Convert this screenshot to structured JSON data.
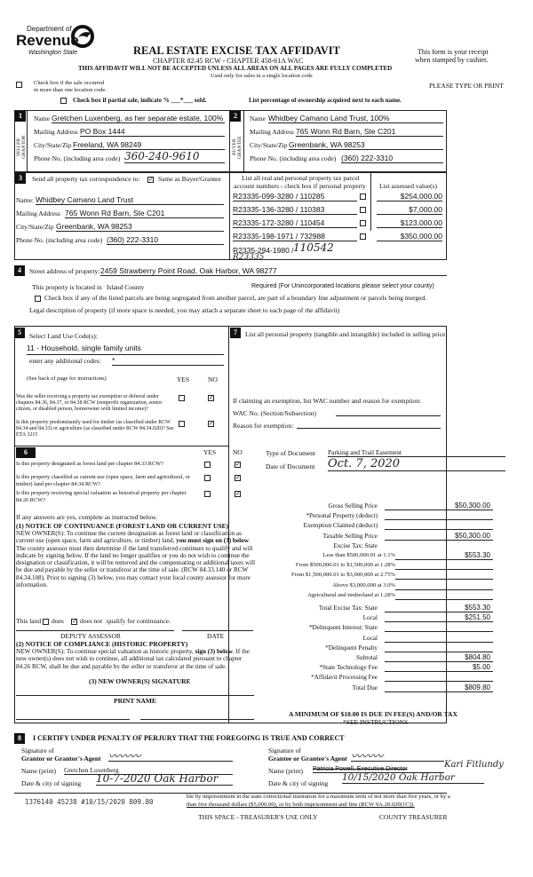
{
  "header": {
    "dept_line1": "Department of",
    "dept_line2": "Revenue",
    "dept_line3": "Washington State",
    "title": "REAL ESTATE EXCISE TAX AFFIDAVIT",
    "chapter": "CHAPTER 82.45 RCW - CHAPTER 458-61A WAC",
    "receipt_line1": "This form is your receipt",
    "receipt_line2": "when stamped by cashier.",
    "warning": "THIS AFFIDAVIT WILL NOT BE ACCEPTED UNLESS ALL AREAS ON ALL PAGES ARE FULLY COMPLETED",
    "used_only": "Used only for sales in a single location code",
    "multi_location_line1": "Check box if the sale occurred",
    "multi_location_line2": "in more than one location code.",
    "please_type": "PLEASE TYPE OR PRINT",
    "partial_sale": "Check box if partial sale, indicate % ___*___ sold.",
    "list_percentage": "List percentage of ownership acquired next to each name."
  },
  "seller": {
    "num": "1",
    "side_label": "SELLER GRANTOR",
    "name_label": "Name",
    "name": "Gretchen Luxenberg, as her separate estate, 100%",
    "address_label": "Mailing Address",
    "address": "PO Box 1444",
    "city_label": "City/State/Zip",
    "city": "Freeland, WA  98249",
    "phone_label": "Phone No. (including area code)",
    "phone": "360-240-9610"
  },
  "buyer": {
    "num": "2",
    "side_label": "BUYER GRANTEE",
    "name_label": "Name",
    "name": "Whidbey Camano Land Trust, 100%",
    "address_label": "Mailing Address",
    "address": "765 Wonn Rd Barn, Ste C201",
    "city_label": "City/State/Zip",
    "city": "Greenbank, WA  98253",
    "phone_label": "Phone No. (including area code)",
    "phone": "(360) 222-3310"
  },
  "correspondence": {
    "num": "3",
    "label": "Send all property tax correspondence to:",
    "same_as": "Same as Buyer/Grantee",
    "same_checked": true,
    "name_label": "Name:",
    "name": "Whidbey Camano Land Trust",
    "address_label": "Mailing Address",
    "address": "765 Wonn Rd Barn, Ste C201",
    "city_label": "City/State/Zip",
    "city": "Greenbank, WA  98253",
    "phone_label": "Phone No. (including area code)",
    "phone": "(360) 222-3310"
  },
  "parcels": {
    "header1": "List all real and personal property tax parcel",
    "header2": "account numbers - check box if personal property",
    "values_header": "List assessed value(s)",
    "rows": [
      {
        "account": "R23335-099-3280 / 110285",
        "value": "$254,000.00"
      },
      {
        "account": "R23335-136-3280 / 110383",
        "value": "$7,000.00"
      },
      {
        "account": "R23335-172-3280 / 110454",
        "value": "$123,000.00"
      },
      {
        "account": "R23335-198-1971 / 732988",
        "value": "$350,000.00"
      }
    ],
    "extra_account": "R2335-294-1980 / ",
    "extra_handwritten": "110542",
    "extra_correction": "R23335"
  },
  "property": {
    "num": "4",
    "street_label": "Street address of property:",
    "street": "2459 Strawberry Point Road, Oak Harbor, WA 98277",
    "located_label": "This property is located in",
    "county": "Island County",
    "required_note": "Required (For Unincorporated locations please select your county)",
    "segregated": "Check box if any of the listed parcels are being segregated from another parcel, are part of a boundary line adjustment or parcels being merged.",
    "legal": "Legal description of property (if more space is needed, you may attach a separate sheet to each page of the affidavit)"
  },
  "land_use": {
    "num": "5",
    "label": "Select Land Use Code(s):",
    "code": "11 - Household, single family units",
    "additional_label": "enter any additional codes:",
    "additional": "*",
    "see_back": "(See back of page for instructions)",
    "yes": "YES",
    "no": "NO",
    "q1": "Was the seller receiving a property tax exemption or deferral under chapters 84.36, 84.37, or 84.38 RCW (nonprofit organization, senior citizen, or disabled person, homeowner with limited income)?",
    "q2": "Is this property predominantly used for timber (as classified under RCW 84.34 and 84.33) or agriculture (as classified under RCW 84.34.020)? See ETA 3215"
  },
  "section6": {
    "num": "6",
    "yes": "YES",
    "no": "NO",
    "q1": "Is this property designated as forest land per chapter 84.33 RCW?",
    "q2": "Is this property classified as current use (open space, farm and agricultural, or timber) land per chapter 84.34 RCW?",
    "q3": "Is this property receiving special valuation as historical property per chapter 84.26 RCW?",
    "if_yes": "If any answers are yes, complete as instructed below.",
    "notice1_title": "(1) NOTICE OF CONTINUANCE (FOREST LAND OR CURRENT USE)",
    "notice1_a": "NEW OWNER(S): To continue the current designation as forest land or classification as current use (open space, farm and agriculture, or timber) land, ",
    "notice1_bold": "you must sign on (3) below",
    "notice1_b": ". The county assessor must then determine if the land transferred continues to qualify and will indicate by signing below. If the land no longer qualifies or you do not wish to continue the designation or classification, it will be removed and the compensating or additional taxes will be due and payable by the seller or transferor at the time of sale. (RCW 84.33.140 or RCW 84.34.108). Prior to signing (3) below, you may contact your local county assessor for more information.",
    "this_land": "This land",
    "does": "does",
    "does_not": "does not",
    "qualify": "qualify for continuance.",
    "deputy": "DEPUTY ASSESSOR",
    "date": "DATE",
    "notice2_title": "(2) NOTICE OF COMPLIANCE (HISTORIC PROPERTY)",
    "notice2_a": "NEW OWNER(S): To continue special valuation as historic property, ",
    "notice2_bold1": "sign (3) below",
    "notice2_b": ". If the new owner(s) does not wish to continue, all additional tax calculated pursuant to chapter 84.26 RCW, shall be due and payable by the seller or transferor at the time of sale.",
    "new_owner_sig": "(3) NEW OWNER(S) SIGNATURE",
    "print_name": "PRINT NAME"
  },
  "section7": {
    "num": "7",
    "label": "List all personal property (tangible and intangible) included in selling price.",
    "exemption_label": "If claiming an exemption, list WAC number and reason for exemption:",
    "wac_label": "WAC No. (Section/Subsection)",
    "reason_label": "Reason for exemption:",
    "doc_type_label": "Type of Document",
    "doc_type": "Parking and Trail Easement",
    "doc_date_label": "Date of Document",
    "doc_date": "Oct. 7, 2020"
  },
  "tax": {
    "rows": [
      {
        "label": "Gross Selling Price",
        "value": "$50,300.00"
      },
      {
        "label": "*Personal Property (deduct)",
        "value": ""
      },
      {
        "label": "Exemption Claimed (deduct)",
        "value": ""
      },
      {
        "label": "Taxable Selling Price",
        "value": "$50,300.00"
      },
      {
        "label": "Excise Tax:  State",
        "value": "",
        "noline": true
      },
      {
        "label": "Less than $500,000.01 at 1.1%",
        "value": "$553.30",
        "wide": true
      },
      {
        "label": "From $500,000.01 to $1,500,000 at 1.28%",
        "value": "",
        "wide": true
      },
      {
        "label": "From $1,500,000.01 to $3,000,000 at 2.75%",
        "value": "",
        "wide": true
      },
      {
        "label": "Above $3,000,000 at 3.0%",
        "value": "",
        "wide": true
      },
      {
        "label": "Agricultural and timberland at 1.28%",
        "value": "",
        "wide": true
      },
      {
        "label": "Total Excise Tax: State",
        "value": "$553.30"
      },
      {
        "label": "Local",
        "value": "$251.50"
      },
      {
        "label": "*Delinquent Interest:  State",
        "value": ""
      },
      {
        "label": "Local",
        "value": ""
      },
      {
        "label": "*Delinquent Penalty",
        "value": ""
      },
      {
        "label": "Subtotal",
        "value": "$804.80"
      },
      {
        "label": "*State Technology Fee",
        "value": "$5.00"
      },
      {
        "label": "*Affidavit Processing Fee",
        "value": ""
      },
      {
        "label": "Total Due",
        "value": "$809.80"
      }
    ],
    "minimum": "A MINIMUM OF $10.00 IS DUE IN FEE(S) AND/OR TAX",
    "see_instructions": "*SEE INSTRUCTIONS"
  },
  "certify": {
    "num": "8",
    "title": "I CERTIFY UNDER PENALTY OF PERJURY THAT THE FOREGOING IS TRUE AND CORRECT",
    "grantor_sig_label1": "Signature of",
    "grantor_sig_label2": "Grantor or Grantor's Agent",
    "grantor_name_label": "Name (print)",
    "grantor_name": "Gretchen Luxenberg",
    "grantor_date_label": "Date & city of signing",
    "grantor_date": "10-7-2020   Oak Harbor",
    "grantee_sig_label1": "Signature of",
    "grantee_sig_label2": "Grantee or Grantee's Agent",
    "grantee_name_label": "Name (print)",
    "grantee_name_struck": "Patricia Powell, Executive Director",
    "grantee_name_hw": "Kari Fitlundy",
    "grantee_date_label": "Date & city of signing",
    "grantee_date": "10/15/2020 Oak Harbor"
  },
  "footer": {
    "penalty_line1": "ble by imprisonment in the state correctional institution for a maximum term of not more than five years, or by a",
    "penalty_line2": "than five thousand dollars ($5,000.00), or by both imprisonment and fine (RCW 9A.20.020(1C)).",
    "stamp": "1376140  45238 #10/15/2020 809.80",
    "treasurer_use": "THIS SPACE - TREASURER'S USE ONLY",
    "county_treasurer": "COUNTY TREASURER"
  }
}
